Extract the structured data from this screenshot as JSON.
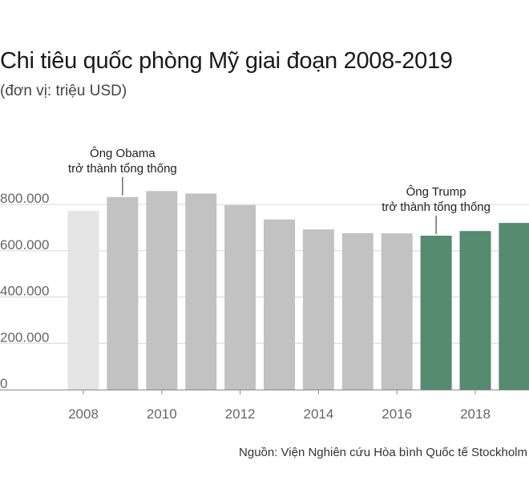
{
  "chart_data": {
    "type": "bar",
    "title": "Chi tiêu quốc phòng Mỹ giai đoạn 2008-2019",
    "subtitle": "(đơn vị: triệu USD)",
    "source": "Nguồn: Viện Nghiên cứu Hòa bình Quốc tế Stockholm",
    "categories": [
      "2008",
      "2009",
      "2010",
      "2011",
      "2012",
      "2013",
      "2014",
      "2015",
      "2016",
      "2017",
      "2018",
      "2019"
    ],
    "values": [
      772000,
      832000,
      858000,
      847000,
      797000,
      735000,
      692000,
      676000,
      675000,
      665000,
      685000,
      720000
    ],
    "x_tick_labels": [
      "2008",
      "2010",
      "2012",
      "2014",
      "2016",
      "2018"
    ],
    "y_tick_labels": [
      "0",
      "200.000",
      "400.000",
      "600.000",
      "800.000"
    ],
    "y_ticks": [
      0,
      200000,
      400000,
      600000,
      800000
    ],
    "ylim": [
      0,
      850000
    ],
    "grid": true,
    "colors": {
      "first": "#e4e4e4",
      "obama": "#c2c2c2",
      "trump": "#558b6e",
      "gridline": "#d8d8d8",
      "axis": "#888888"
    },
    "bar_groups": [
      "first",
      "obama",
      "obama",
      "obama",
      "obama",
      "obama",
      "obama",
      "obama",
      "obama",
      "trump",
      "trump",
      "trump"
    ],
    "annotations": [
      {
        "bar_index": 1,
        "lines": [
          "Ông Obama",
          "trở thành tổng thống"
        ]
      },
      {
        "bar_index": 9,
        "lines": [
          "Ông Trump",
          "trở thành tổng thống"
        ]
      }
    ]
  }
}
